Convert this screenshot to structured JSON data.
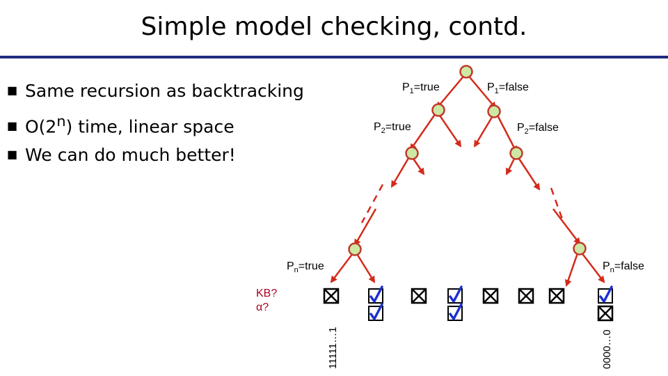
{
  "title": "Simple model checking, contd.",
  "bullets": [
    {
      "text": "Same recursion as backtracking"
    },
    {
      "pre": "O(2",
      "sup": "n",
      "post": ") time, linear space"
    },
    {
      "text": "We can do much better!"
    }
  ],
  "labels": {
    "p1_true": {
      "var": "P",
      "sub": "1",
      "val": "=true"
    },
    "p1_false": {
      "var": "P",
      "sub": "1",
      "val": "=false"
    },
    "p2_true": {
      "var": "P",
      "sub": "2",
      "val": "=true"
    },
    "p2_false": {
      "var": "P",
      "sub": "2",
      "val": "=false"
    },
    "pn_true": {
      "var": "P",
      "sub": "n",
      "val": "=true"
    },
    "pn_false": {
      "var": "P",
      "sub": "n",
      "val": "=false"
    }
  },
  "kb_question": "KB?",
  "alpha_question": "α?",
  "leaf_left_label": "11111…1",
  "leaf_right_label": "0000…0",
  "leaves": [
    {
      "kb": "x",
      "alpha": ""
    },
    {
      "kb": "check",
      "alpha": "check"
    },
    {
      "kb": "x",
      "alpha": ""
    },
    {
      "kb": "check",
      "alpha": "check"
    },
    {
      "kb": "x",
      "alpha": ""
    },
    {
      "kb": "x",
      "alpha": ""
    },
    {
      "kb": "x",
      "alpha": ""
    },
    {
      "kb": "check",
      "alpha": "x"
    }
  ],
  "colors": {
    "node_fill": "#cde8a4",
    "node_stroke": "#c0392b",
    "edge": "#d42a1a",
    "check": "#1a2fd0",
    "box": "#000000",
    "rule": "#1f2b80"
  }
}
